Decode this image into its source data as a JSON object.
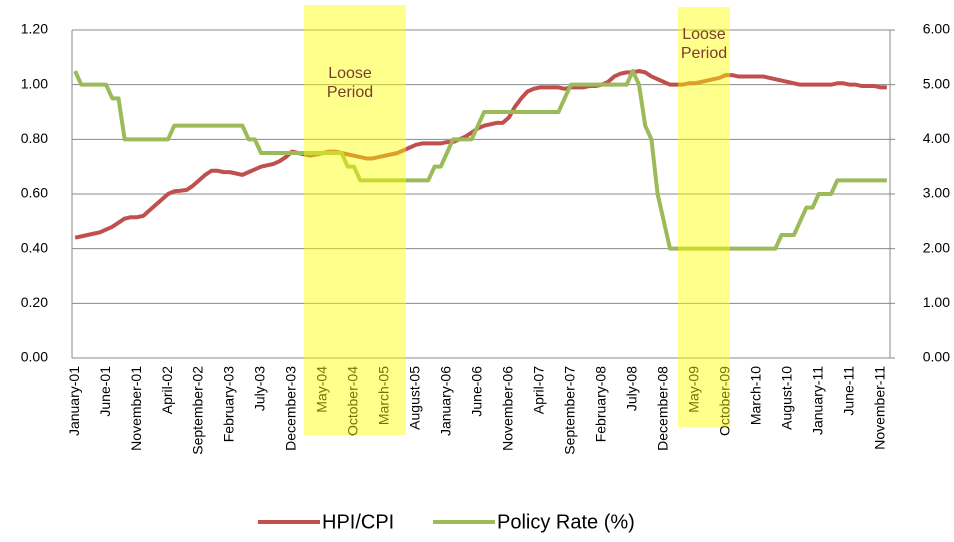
{
  "chart_data": {
    "type": "line",
    "categories": [
      "January-01",
      null,
      null,
      null,
      null,
      "June-01",
      null,
      null,
      null,
      null,
      "November-01",
      null,
      null,
      null,
      null,
      "April-02",
      null,
      null,
      null,
      null,
      "September-02",
      null,
      null,
      null,
      null,
      "February-03",
      null,
      null,
      null,
      null,
      "July-03",
      null,
      null,
      null,
      null,
      "December-03",
      null,
      null,
      null,
      null,
      "May-04",
      null,
      null,
      null,
      null,
      "October-04",
      null,
      null,
      null,
      null,
      "March-05",
      null,
      null,
      null,
      null,
      "August-05",
      null,
      null,
      null,
      null,
      "January-06",
      null,
      null,
      null,
      null,
      "June-06",
      null,
      null,
      null,
      null,
      "November-06",
      null,
      null,
      null,
      null,
      "April-07",
      null,
      null,
      null,
      null,
      "September-07",
      null,
      null,
      null,
      null,
      "February-08",
      null,
      null,
      null,
      null,
      "July-08",
      null,
      null,
      null,
      null,
      "December-08",
      null,
      null,
      null,
      null,
      "May-09",
      null,
      null,
      null,
      null,
      "October-09",
      null,
      null,
      null,
      null,
      "March-10",
      null,
      null,
      null,
      null,
      "August-10",
      null,
      null,
      null,
      null,
      "January-11",
      null,
      null,
      null,
      null,
      "June-11",
      null,
      null,
      null,
      null,
      "November-11",
      null
    ],
    "series": [
      {
        "name": "HPI/CPI",
        "color": "#c0504d",
        "values": [
          0.44,
          0.445,
          0.45,
          0.455,
          0.46,
          0.47,
          0.48,
          0.495,
          0.51,
          0.515,
          0.515,
          0.52,
          0.54,
          0.56,
          0.58,
          0.6,
          0.61,
          0.612,
          0.615,
          0.63,
          0.65,
          0.67,
          0.685,
          0.685,
          0.68,
          0.68,
          0.675,
          0.67,
          0.68,
          0.69,
          0.7,
          0.705,
          0.71,
          0.72,
          0.735,
          0.755,
          0.75,
          0.745,
          0.74,
          0.745,
          0.75,
          0.755,
          0.755,
          0.75,
          0.745,
          0.74,
          0.735,
          0.73,
          0.73,
          0.735,
          0.74,
          0.745,
          0.75,
          0.76,
          0.77,
          0.78,
          0.785,
          0.785,
          0.785,
          0.785,
          0.79,
          0.79,
          0.8,
          0.81,
          0.825,
          0.84,
          0.85,
          0.855,
          0.86,
          0.86,
          0.88,
          0.92,
          0.95,
          0.975,
          0.985,
          0.99,
          0.99,
          0.99,
          0.99,
          0.985,
          0.99,
          0.99,
          0.99,
          0.995,
          0.995,
          1.0,
          1.01,
          1.03,
          1.04,
          1.045,
          1.045,
          1.05,
          1.045,
          1.03,
          1.02,
          1.01,
          1.0,
          1.0,
          1.0,
          1.005,
          1.005,
          1.01,
          1.015,
          1.02,
          1.025,
          1.035,
          1.035,
          1.03,
          1.03,
          1.03,
          1.03,
          1.03,
          1.025,
          1.02,
          1.015,
          1.01,
          1.005,
          1.0,
          1.0,
          1.0,
          1.0,
          1.0,
          1.0,
          1.005,
          1.005,
          1.0,
          1.0,
          0.995,
          0.995,
          0.995,
          0.99,
          0.99
        ]
      },
      {
        "name": "Policy Rate (%)",
        "color": "#9bbb59",
        "axis": "y2",
        "values": [
          5.25,
          5.0,
          5.0,
          5.0,
          5.0,
          5.0,
          4.75,
          4.75,
          4.0,
          4.0,
          4.0,
          4.0,
          4.0,
          4.0,
          4.0,
          4.0,
          4.25,
          4.25,
          4.25,
          4.25,
          4.25,
          4.25,
          4.25,
          4.25,
          4.25,
          4.25,
          4.25,
          4.25,
          4.0,
          4.0,
          3.75,
          3.75,
          3.75,
          3.75,
          3.75,
          3.75,
          3.75,
          3.75,
          3.75,
          3.75,
          3.75,
          3.75,
          3.75,
          3.75,
          3.5,
          3.5,
          3.25,
          3.25,
          3.25,
          3.25,
          3.25,
          3.25,
          3.25,
          3.25,
          3.25,
          3.25,
          3.25,
          3.25,
          3.5,
          3.5,
          3.75,
          4.0,
          4.0,
          4.0,
          4.0,
          4.25,
          4.5,
          4.5,
          4.5,
          4.5,
          4.5,
          4.5,
          4.5,
          4.5,
          4.5,
          4.5,
          4.5,
          4.5,
          4.5,
          4.75,
          5.0,
          5.0,
          5.0,
          5.0,
          5.0,
          5.0,
          5.0,
          5.0,
          5.0,
          5.0,
          5.25,
          5.0,
          4.25,
          4.0,
          3.0,
          2.5,
          2.0,
          2.0,
          2.0,
          2.0,
          2.0,
          2.0,
          2.0,
          2.0,
          2.0,
          2.0,
          2.0,
          2.0,
          2.0,
          2.0,
          2.0,
          2.0,
          2.0,
          2.0,
          2.25,
          2.25,
          2.25,
          2.5,
          2.75,
          2.75,
          3.0,
          3.0,
          3.0,
          3.25,
          3.25,
          3.25,
          3.25,
          3.25,
          3.25,
          3.25,
          3.25,
          3.25
        ]
      }
    ],
    "ylim": [
      0,
      1.2
    ],
    "yticks": [
      {
        "value": 0,
        "label": "0.00"
      },
      {
        "value": 0.2,
        "label": "0.20"
      },
      {
        "value": 0.4,
        "label": "0.40"
      },
      {
        "value": 0.6,
        "label": "0.60"
      },
      {
        "value": 0.8,
        "label": "0.80"
      },
      {
        "value": 1.0,
        "label": "1.00"
      },
      {
        "value": 1.2,
        "label": "1.20"
      }
    ],
    "y2lim": [
      0,
      6
    ],
    "y2ticks": [
      {
        "value": 0,
        "label": "0.00"
      },
      {
        "value": 1,
        "label": "1.00"
      },
      {
        "value": 2,
        "label": "2.00"
      },
      {
        "value": 3,
        "label": "3.00"
      },
      {
        "value": 4,
        "label": "4.00"
      },
      {
        "value": 5,
        "label": "5.00"
      },
      {
        "value": 6,
        "label": "6.00"
      }
    ],
    "grid": true,
    "legend": "bottom",
    "annotations": [
      "Loose Period",
      "Loose Period"
    ]
  }
}
